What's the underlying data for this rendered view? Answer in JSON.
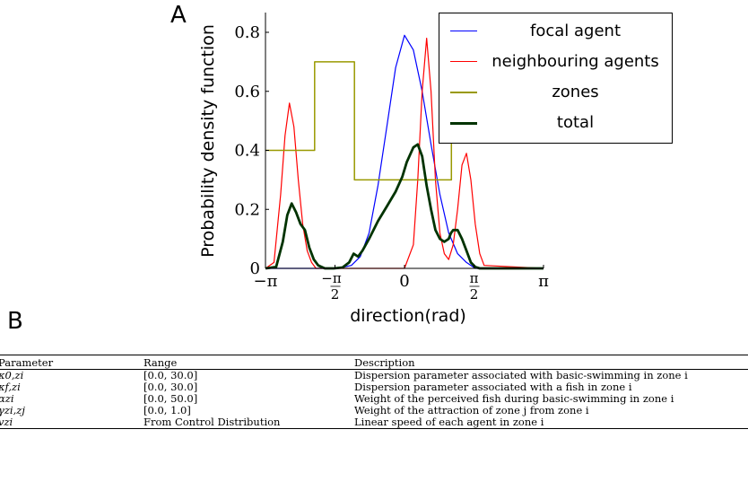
{
  "panels": {
    "a_label": "A",
    "b_label": "B"
  },
  "chart_data": {
    "type": "line",
    "title": "",
    "xlabel": "direction(rad)",
    "ylabel": "Probability density function",
    "xlim": [
      -3.1416,
      3.1416
    ],
    "ylim": [
      0,
      0.85
    ],
    "xtick_values": [
      -3.1416,
      -1.5708,
      0,
      1.5708,
      3.1416
    ],
    "xtick_labels": [
      "−π",
      "−π/2",
      "0",
      "π/2",
      "π"
    ],
    "ytick_values": [
      0,
      0.2,
      0.4,
      0.6,
      0.8
    ],
    "ytick_labels": [
      "0",
      "0.2",
      "0.4",
      "0.6",
      "0.8"
    ],
    "grid": false,
    "legend_position": "top-right",
    "series": [
      {
        "name": "focal agent",
        "color": "#0000ff",
        "width": 1.2,
        "x": [
          -3.14,
          -2.5,
          -1.5,
          -1.2,
          -1.0,
          -0.8,
          -0.6,
          -0.4,
          -0.2,
          0,
          0.2,
          0.4,
          0.6,
          0.8,
          1.0,
          1.2,
          1.4,
          1.6,
          3.14
        ],
        "y": [
          0,
          0,
          0,
          0.01,
          0.04,
          0.12,
          0.28,
          0.48,
          0.68,
          0.79,
          0.74,
          0.6,
          0.42,
          0.25,
          0.12,
          0.05,
          0.02,
          0,
          0
        ]
      },
      {
        "name": "neighbouring agents",
        "color": "#ff0000",
        "width": 1.2,
        "x": [
          -3.14,
          -2.95,
          -2.8,
          -2.7,
          -2.6,
          -2.5,
          -2.4,
          -2.3,
          -2.2,
          -2.1,
          -2.0,
          -1.5,
          -1.0,
          -0.5,
          0,
          0.2,
          0.3,
          0.4,
          0.5,
          0.6,
          0.7,
          0.8,
          0.9,
          1.0,
          1.1,
          1.2,
          1.3,
          1.4,
          1.5,
          1.6,
          1.7,
          1.8,
          3.14
        ],
        "y": [
          0,
          0.02,
          0.25,
          0.45,
          0.56,
          0.48,
          0.3,
          0.15,
          0.06,
          0.02,
          0,
          0,
          0,
          0,
          0,
          0.08,
          0.3,
          0.6,
          0.78,
          0.6,
          0.3,
          0.12,
          0.05,
          0.03,
          0.08,
          0.2,
          0.35,
          0.39,
          0.3,
          0.15,
          0.05,
          0.01,
          0
        ]
      },
      {
        "name": "zones",
        "color": "#999900",
        "width": 1.5,
        "x": [
          -3.14,
          -2.03,
          -2.03,
          -1.13,
          -1.13,
          1.06,
          1.06,
          3.14
        ],
        "y": [
          0.4,
          0.4,
          0.7,
          0.7,
          0.3,
          0.3,
          0.45,
          0.45
        ]
      },
      {
        "name": "total",
        "color": "#003300",
        "width": 2.8,
        "x": [
          -3.14,
          -2.9,
          -2.75,
          -2.65,
          -2.55,
          -2.45,
          -2.35,
          -2.25,
          -2.15,
          -2.05,
          -1.95,
          -1.8,
          -1.6,
          -1.4,
          -1.25,
          -1.15,
          -1.05,
          -0.95,
          -0.8,
          -0.6,
          -0.4,
          -0.2,
          -0.05,
          0.05,
          0.2,
          0.3,
          0.4,
          0.5,
          0.6,
          0.7,
          0.8,
          0.9,
          1.0,
          1.05,
          1.1,
          1.2,
          1.3,
          1.4,
          1.5,
          1.6,
          1.7,
          1.8,
          3.14
        ],
        "y": [
          0,
          0.005,
          0.09,
          0.18,
          0.22,
          0.19,
          0.15,
          0.13,
          0.07,
          0.03,
          0.01,
          0,
          0,
          0.003,
          0.02,
          0.05,
          0.04,
          0.06,
          0.1,
          0.16,
          0.21,
          0.26,
          0.31,
          0.36,
          0.41,
          0.42,
          0.38,
          0.28,
          0.2,
          0.13,
          0.1,
          0.09,
          0.1,
          0.12,
          0.13,
          0.13,
          0.1,
          0.06,
          0.02,
          0.005,
          0,
          0,
          0
        ]
      }
    ]
  },
  "table": {
    "headers": [
      "Parameter",
      "Range",
      "Description"
    ],
    "rows": [
      {
        "param": "κ0,zi",
        "range": "[0.0, 30.0]",
        "desc": "Dispersion parameter associated with basic-swimming in zone i"
      },
      {
        "param": "κf,zi",
        "range": "[0.0, 30.0]",
        "desc": "Dispersion parameter associated with a fish in zone i"
      },
      {
        "param": "αzi",
        "range": "[0.0, 50.0]",
        "desc": "Weight of the perceived fish during basic-swimming in zone i"
      },
      {
        "param": "γzi,zj",
        "range": "[0.0, 1.0]",
        "desc": "Weight of the attraction of zone j from zone i"
      },
      {
        "param": "vzi",
        "range": "From Control Distribution",
        "desc": "Linear speed of each agent in zone i"
      }
    ]
  }
}
